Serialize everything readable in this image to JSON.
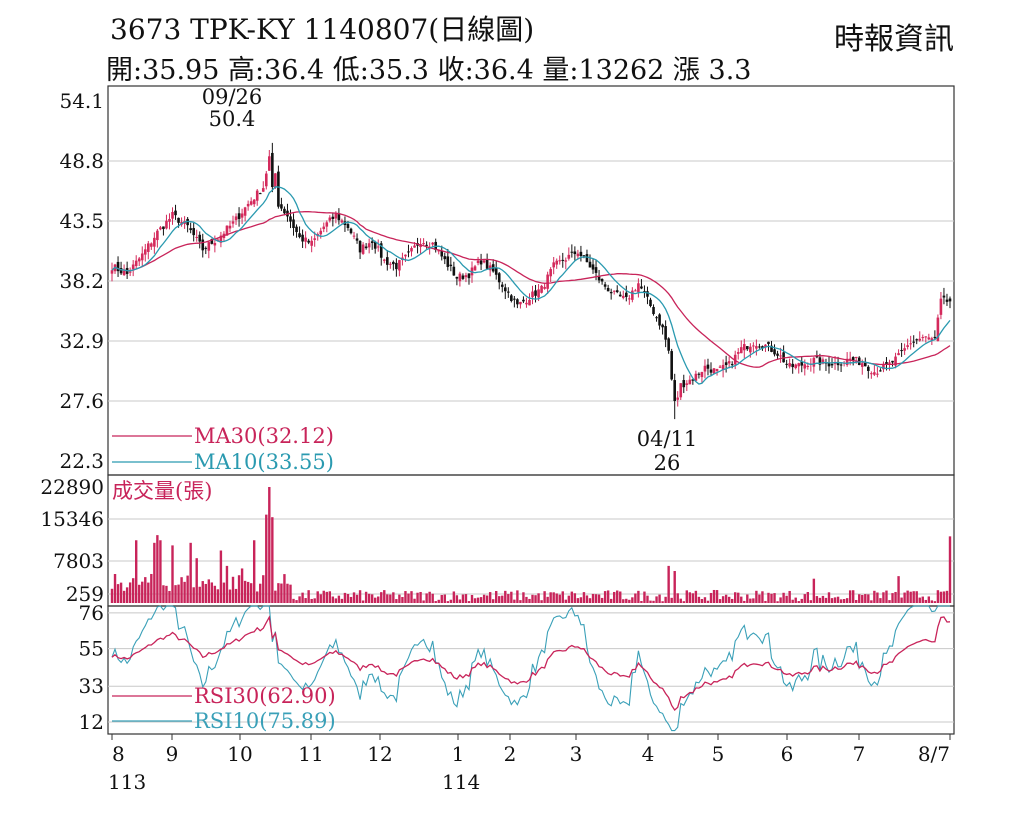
{
  "header": {
    "title": "3673  TPK-KY 1140807(日線圖)",
    "stats": "開:35.95 高:36.4 低:35.3 收:36.4 量:13262 漲 3.3",
    "source": "時報資訊"
  },
  "colors": {
    "up": "#d42a5c",
    "down": "#111111",
    "ma30": "#c8245a",
    "ma10": "#2a9ab0",
    "volume": "#c8245a",
    "rsi30": "#c8245a",
    "rsi10": "#3aa0b8",
    "grid": "#c8c8c8"
  },
  "chart_data": [
    {
      "type": "candlestick",
      "ylim": [
        22.3,
        54.1
      ],
      "yticks": [
        "54.1",
        "48.8",
        "43.5",
        "38.2",
        "32.9",
        "27.6",
        "22.3"
      ],
      "annotations": [
        {
          "date": "09/26",
          "value": "50.4",
          "label_top": "09/26",
          "label_bottom": "50.4"
        },
        {
          "date": "04/11",
          "value": "26",
          "label_top": "04/11",
          "label_bottom": "26"
        }
      ],
      "anchors": [
        [
          0,
          39.5
        ],
        [
          5,
          38.8
        ],
        [
          10,
          40.5
        ],
        [
          15,
          42.5
        ],
        [
          20,
          44
        ],
        [
          25,
          43
        ],
        [
          30,
          41
        ],
        [
          35,
          42
        ],
        [
          40,
          43.3
        ],
        [
          45,
          45
        ],
        [
          50,
          46.5
        ],
        [
          53,
          50.4
        ],
        [
          55,
          45
        ],
        [
          58,
          44
        ],
        [
          62,
          42
        ],
        [
          66,
          41.5
        ],
        [
          70,
          43
        ],
        [
          74,
          44
        ],
        [
          78,
          43
        ],
        [
          82,
          41
        ],
        [
          86,
          41.8
        ],
        [
          90,
          40
        ],
        [
          94,
          39.5
        ],
        [
          98,
          40.5
        ],
        [
          102,
          41.8
        ],
        [
          106,
          41.5
        ],
        [
          110,
          40
        ],
        [
          114,
          38.5
        ],
        [
          118,
          38.8
        ],
        [
          122,
          40
        ],
        [
          126,
          39
        ],
        [
          130,
          37.5
        ],
        [
          134,
          36
        ],
        [
          138,
          36.8
        ],
        [
          142,
          37.5
        ],
        [
          146,
          39.5
        ],
        [
          150,
          40.2
        ],
        [
          154,
          40.8
        ],
        [
          158,
          39.5
        ],
        [
          162,
          38
        ],
        [
          166,
          37
        ],
        [
          170,
          36.5
        ],
        [
          174,
          38
        ],
        [
          178,
          36
        ],
        [
          182,
          34
        ],
        [
          184,
          32
        ],
        [
          186,
          27
        ],
        [
          188,
          29
        ],
        [
          192,
          29.6
        ],
        [
          196,
          30.6
        ],
        [
          200,
          30.2
        ],
        [
          204,
          30.8
        ],
        [
          208,
          32.2
        ],
        [
          212,
          32.8
        ],
        [
          216,
          32.5
        ],
        [
          220,
          31.8
        ],
        [
          224,
          30.6
        ],
        [
          228,
          30.8
        ],
        [
          232,
          31.2
        ],
        [
          236,
          30.9
        ],
        [
          240,
          31
        ],
        [
          244,
          31.3
        ],
        [
          248,
          31
        ],
        [
          252,
          30.2
        ],
        [
          256,
          30.6
        ],
        [
          260,
          31.5
        ],
        [
          264,
          32.8
        ],
        [
          268,
          33.2
        ],
        [
          272,
          33
        ],
        [
          274,
          36.4
        ]
      ],
      "moving_averages": [
        {
          "name": "MA30",
          "value": "32.12",
          "label": "MA30(32.12)",
          "period": 30
        },
        {
          "name": "MA10",
          "value": "33.55",
          "label": "MA10(33.55)",
          "period": 10
        }
      ]
    },
    {
      "type": "bar",
      "title": "成交量(張)",
      "yticks": [
        "22890",
        "15346",
        "7803",
        "259"
      ],
      "ylim": [
        259,
        22890
      ],
      "spikes": [
        [
          8,
          12500
        ],
        [
          14,
          12000
        ],
        [
          15,
          13500
        ],
        [
          16,
          12500
        ],
        [
          20,
          11500
        ],
        [
          26,
          12000
        ],
        [
          28,
          9000
        ],
        [
          36,
          10500
        ],
        [
          38,
          7500
        ],
        [
          43,
          7000
        ],
        [
          47,
          12500
        ],
        [
          51,
          17500
        ],
        [
          52,
          22890
        ],
        [
          53,
          17000
        ],
        [
          184,
          7500
        ],
        [
          186,
          6500
        ],
        [
          232,
          5000
        ],
        [
          260,
          5500
        ],
        [
          277,
          13262
        ]
      ]
    },
    {
      "type": "line",
      "yticks": [
        "76",
        "55",
        "33",
        "12"
      ],
      "ylim": [
        5,
        80
      ],
      "series": [
        {
          "name": "RSI30",
          "value": "62.90",
          "label": "RSI30(62.90)"
        },
        {
          "name": "RSI10",
          "value": "75.89",
          "label": "RSI10(75.89)"
        }
      ],
      "x_labels": [
        {
          "month": "8",
          "year": "113"
        },
        {
          "month": "9",
          "year": ""
        },
        {
          "month": "10",
          "year": ""
        },
        {
          "month": "11",
          "year": ""
        },
        {
          "month": "12",
          "year": ""
        },
        {
          "month": "1",
          "year": "114"
        },
        {
          "month": "2",
          "year": ""
        },
        {
          "month": "3",
          "year": ""
        },
        {
          "month": "4",
          "year": ""
        },
        {
          "month": "5",
          "year": ""
        },
        {
          "month": "6",
          "year": ""
        },
        {
          "month": "7",
          "year": ""
        },
        {
          "month": "8/7",
          "year": ""
        }
      ]
    }
  ]
}
